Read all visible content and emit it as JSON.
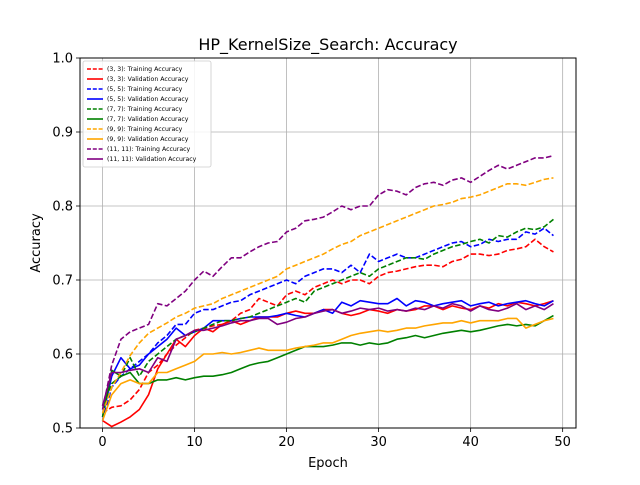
{
  "chart_data": {
    "type": "line",
    "title": "HP_KernelSize_Search: Accuracy",
    "xlabel": "Epoch",
    "ylabel": "Accuracy",
    "xlim": [
      -2.45,
      51.45
    ],
    "ylim": [
      0.5,
      1.0
    ],
    "xticks": [
      0,
      10,
      20,
      30,
      40,
      50
    ],
    "yticks": [
      0.5,
      0.6,
      0.7,
      0.8,
      0.9,
      1.0
    ],
    "xtick_labels": [
      "0",
      "10",
      "20",
      "30",
      "40",
      "50"
    ],
    "ytick_labels": [
      "0.5",
      "0.6",
      "0.7",
      "0.8",
      "0.9",
      "1.0"
    ],
    "grid": true,
    "legend_position": "top-left",
    "x": [
      0,
      1,
      2,
      3,
      4,
      5,
      6,
      7,
      8,
      9,
      10,
      11,
      12,
      13,
      14,
      15,
      16,
      17,
      18,
      19,
      20,
      21,
      22,
      23,
      24,
      25,
      26,
      27,
      28,
      29,
      30,
      31,
      32,
      33,
      34,
      35,
      36,
      37,
      38,
      39,
      40,
      41,
      42,
      43,
      44,
      45,
      46,
      47,
      48,
      49
    ],
    "series": [
      {
        "name": "(3, 3): Training Accuracy",
        "color": "#ff0000",
        "dash": "dashed",
        "values": [
          0.52,
          0.528,
          0.53,
          0.538,
          0.552,
          0.575,
          0.585,
          0.6,
          0.612,
          0.622,
          0.632,
          0.635,
          0.638,
          0.64,
          0.645,
          0.655,
          0.66,
          0.675,
          0.67,
          0.665,
          0.68,
          0.685,
          0.68,
          0.69,
          0.695,
          0.7,
          0.695,
          0.7,
          0.7,
          0.695,
          0.705,
          0.71,
          0.712,
          0.715,
          0.718,
          0.72,
          0.72,
          0.718,
          0.725,
          0.728,
          0.735,
          0.735,
          0.733,
          0.735,
          0.74,
          0.742,
          0.745,
          0.755,
          0.745,
          0.738
        ]
      },
      {
        "name": "(3, 3): Validation Accuracy",
        "color": "#ff0000",
        "dash": "solid",
        "values": [
          0.51,
          0.502,
          0.508,
          0.515,
          0.525,
          0.545,
          0.58,
          0.6,
          0.62,
          0.61,
          0.625,
          0.635,
          0.63,
          0.64,
          0.645,
          0.64,
          0.645,
          0.65,
          0.65,
          0.65,
          0.655,
          0.658,
          0.655,
          0.655,
          0.66,
          0.66,
          0.655,
          0.652,
          0.655,
          0.66,
          0.658,
          0.655,
          0.66,
          0.658,
          0.66,
          0.665,
          0.665,
          0.66,
          0.665,
          0.662,
          0.66,
          0.665,
          0.662,
          0.668,
          0.665,
          0.67,
          0.668,
          0.665,
          0.668,
          0.672
        ]
      },
      {
        "name": "(5, 5): Training Accuracy",
        "color": "#0000ff",
        "dash": "dashed",
        "values": [
          0.51,
          0.555,
          0.57,
          0.58,
          0.59,
          0.6,
          0.615,
          0.625,
          0.64,
          0.64,
          0.655,
          0.66,
          0.66,
          0.665,
          0.67,
          0.672,
          0.68,
          0.685,
          0.69,
          0.695,
          0.7,
          0.695,
          0.705,
          0.71,
          0.715,
          0.715,
          0.71,
          0.72,
          0.71,
          0.735,
          0.725,
          0.73,
          0.735,
          0.73,
          0.73,
          0.735,
          0.74,
          0.745,
          0.75,
          0.752,
          0.745,
          0.748,
          0.755,
          0.752,
          0.755,
          0.755,
          0.765,
          0.762,
          0.77,
          0.76
        ]
      },
      {
        "name": "(5, 5): Validation Accuracy",
        "color": "#0000ff",
        "dash": "solid",
        "values": [
          0.515,
          0.57,
          0.595,
          0.58,
          0.585,
          0.6,
          0.61,
          0.62,
          0.635,
          0.625,
          0.63,
          0.635,
          0.645,
          0.645,
          0.645,
          0.648,
          0.65,
          0.65,
          0.65,
          0.652,
          0.655,
          0.652,
          0.65,
          0.655,
          0.66,
          0.655,
          0.67,
          0.665,
          0.672,
          0.67,
          0.668,
          0.668,
          0.675,
          0.665,
          0.672,
          0.67,
          0.665,
          0.668,
          0.67,
          0.672,
          0.665,
          0.668,
          0.67,
          0.665,
          0.668,
          0.67,
          0.672,
          0.668,
          0.665,
          0.672
        ]
      },
      {
        "name": "(7, 7): Training Accuracy",
        "color": "#008000",
        "dash": "dashed",
        "values": [
          0.53,
          0.56,
          0.57,
          0.595,
          0.57,
          0.59,
          0.6,
          0.61,
          0.62,
          0.625,
          0.63,
          0.635,
          0.64,
          0.645,
          0.645,
          0.648,
          0.65,
          0.655,
          0.66,
          0.665,
          0.67,
          0.675,
          0.67,
          0.685,
          0.69,
          0.695,
          0.7,
          0.705,
          0.71,
          0.705,
          0.715,
          0.72,
          0.725,
          0.73,
          0.73,
          0.728,
          0.735,
          0.74,
          0.745,
          0.748,
          0.752,
          0.755,
          0.75,
          0.76,
          0.758,
          0.765,
          0.77,
          0.768,
          0.772,
          0.782
        ]
      },
      {
        "name": "(7, 7): Validation Accuracy",
        "color": "#008000",
        "dash": "solid",
        "values": [
          0.515,
          0.578,
          0.57,
          0.575,
          0.56,
          0.56,
          0.565,
          0.565,
          0.568,
          0.565,
          0.568,
          0.57,
          0.57,
          0.572,
          0.575,
          0.58,
          0.585,
          0.588,
          0.59,
          0.595,
          0.6,
          0.605,
          0.61,
          0.61,
          0.61,
          0.612,
          0.615,
          0.615,
          0.612,
          0.615,
          0.613,
          0.615,
          0.62,
          0.622,
          0.625,
          0.622,
          0.625,
          0.628,
          0.63,
          0.632,
          0.63,
          0.632,
          0.635,
          0.638,
          0.64,
          0.638,
          0.64,
          0.638,
          0.645,
          0.652
        ]
      },
      {
        "name": "(9, 9): Training Accuracy",
        "color": "#ffa500",
        "dash": "dashed",
        "values": [
          0.52,
          0.555,
          0.575,
          0.598,
          0.615,
          0.628,
          0.635,
          0.642,
          0.65,
          0.655,
          0.662,
          0.665,
          0.668,
          0.675,
          0.68,
          0.685,
          0.69,
          0.695,
          0.7,
          0.705,
          0.715,
          0.72,
          0.725,
          0.73,
          0.735,
          0.742,
          0.748,
          0.752,
          0.76,
          0.765,
          0.77,
          0.775,
          0.78,
          0.785,
          0.79,
          0.795,
          0.8,
          0.802,
          0.805,
          0.81,
          0.812,
          0.815,
          0.82,
          0.825,
          0.83,
          0.83,
          0.828,
          0.832,
          0.836,
          0.838
        ]
      },
      {
        "name": "(9, 9): Validation Accuracy",
        "color": "#ffa500",
        "dash": "solid",
        "values": [
          0.51,
          0.545,
          0.56,
          0.565,
          0.56,
          0.56,
          0.575,
          0.575,
          0.58,
          0.585,
          0.59,
          0.6,
          0.6,
          0.602,
          0.6,
          0.602,
          0.605,
          0.608,
          0.605,
          0.605,
          0.605,
          0.608,
          0.61,
          0.612,
          0.615,
          0.615,
          0.62,
          0.625,
          0.628,
          0.63,
          0.632,
          0.63,
          0.632,
          0.635,
          0.635,
          0.638,
          0.64,
          0.642,
          0.642,
          0.645,
          0.642,
          0.645,
          0.645,
          0.645,
          0.648,
          0.648,
          0.635,
          0.64,
          0.645,
          0.648
        ]
      },
      {
        "name": "(11, 11): Training Accuracy",
        "color": "#800080",
        "dash": "dashed",
        "values": [
          0.525,
          0.585,
          0.62,
          0.63,
          0.635,
          0.64,
          0.668,
          0.665,
          0.675,
          0.685,
          0.7,
          0.712,
          0.705,
          0.718,
          0.73,
          0.73,
          0.738,
          0.745,
          0.75,
          0.752,
          0.765,
          0.77,
          0.78,
          0.782,
          0.785,
          0.792,
          0.8,
          0.795,
          0.8,
          0.8,
          0.815,
          0.822,
          0.82,
          0.815,
          0.825,
          0.83,
          0.832,
          0.828,
          0.835,
          0.838,
          0.832,
          0.84,
          0.848,
          0.855,
          0.85,
          0.855,
          0.86,
          0.865,
          0.865,
          0.868
        ]
      },
      {
        "name": "(11, 11): Validation Accuracy",
        "color": "#800080",
        "dash": "solid",
        "values": [
          0.53,
          0.575,
          0.575,
          0.578,
          0.58,
          0.575,
          0.595,
          0.59,
          0.62,
          0.625,
          0.632,
          0.632,
          0.635,
          0.638,
          0.642,
          0.645,
          0.645,
          0.648,
          0.648,
          0.64,
          0.643,
          0.648,
          0.65,
          0.655,
          0.658,
          0.66,
          0.655,
          0.658,
          0.662,
          0.66,
          0.662,
          0.658,
          0.66,
          0.658,
          0.662,
          0.66,
          0.665,
          0.662,
          0.668,
          0.665,
          0.658,
          0.665,
          0.66,
          0.658,
          0.662,
          0.668,
          0.66,
          0.665,
          0.66,
          0.668
        ]
      }
    ]
  }
}
